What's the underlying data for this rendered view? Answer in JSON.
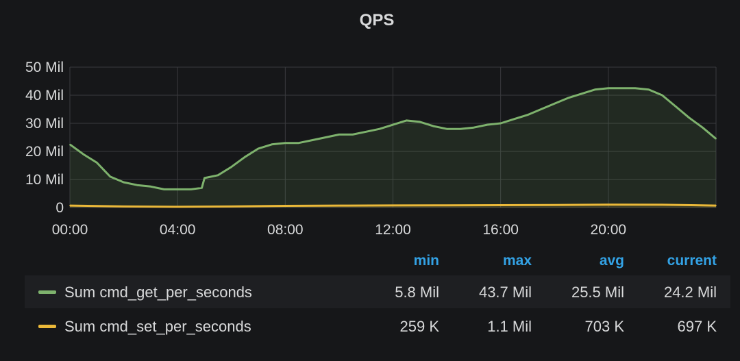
{
  "chart_data": {
    "type": "area",
    "title": "QPS",
    "ylim": [
      0,
      50
    ],
    "yunit": "Mil",
    "yticks": [
      "0",
      "10 Mil",
      "20 Mil",
      "30 Mil",
      "40 Mil",
      "50 Mil"
    ],
    "ytick_values": [
      0,
      10,
      20,
      30,
      40,
      50
    ],
    "xlim": [
      0,
      24
    ],
    "xticks": [
      "00:00",
      "04:00",
      "08:00",
      "12:00",
      "16:00",
      "20:00"
    ],
    "xtick_values": [
      0,
      4,
      8,
      12,
      16,
      20
    ],
    "grid": true,
    "legend_position": "bottom",
    "series": [
      {
        "name": "Sum cmd_get_per_seconds",
        "color": "#7eb26d",
        "x": [
          0,
          0.5,
          1,
          1.5,
          2,
          2.5,
          3,
          3.5,
          4,
          4.5,
          4.9,
          5,
          5.5,
          6,
          6.5,
          7,
          7.5,
          8,
          8.5,
          9,
          9.5,
          10,
          10.5,
          11,
          11.5,
          12,
          12.5,
          13,
          13.5,
          14,
          14.5,
          15,
          15.5,
          16,
          16.5,
          17,
          17.5,
          18,
          18.5,
          19,
          19.5,
          20,
          20.5,
          21,
          21.5,
          22,
          22.5,
          23,
          23.5,
          24
        ],
        "values": [
          22.5,
          19,
          16,
          11,
          9,
          8,
          7.5,
          6.5,
          6.5,
          6.5,
          7,
          10.5,
          11.5,
          14.5,
          18,
          21,
          22.5,
          23,
          23,
          24,
          25,
          26,
          26,
          27,
          28,
          29.5,
          31,
          30.5,
          29,
          28,
          28,
          28.5,
          29.5,
          30,
          31.5,
          33,
          35,
          37,
          39,
          40.5,
          42,
          42.5,
          42.5,
          42.5,
          42,
          40,
          36,
          32,
          28.5,
          24.5
        ],
        "stats": {
          "min": "5.8 Mil",
          "max": "43.7 Mil",
          "avg": "25.5 Mil",
          "current": "24.2 Mil"
        }
      },
      {
        "name": "Sum cmd_set_per_seconds",
        "color": "#eab839",
        "x": [
          0,
          2,
          4,
          6,
          8,
          10,
          12,
          14,
          16,
          18,
          20,
          22,
          24
        ],
        "values": [
          0.7,
          0.4,
          0.26,
          0.4,
          0.6,
          0.7,
          0.75,
          0.8,
          0.85,
          0.9,
          1.05,
          1.0,
          0.7
        ],
        "stats": {
          "min": "259 K",
          "max": "1.1 Mil",
          "avg": "703 K",
          "current": "697 K"
        }
      }
    ]
  },
  "legend": {
    "headers": {
      "min": "min",
      "max": "max",
      "avg": "avg",
      "current": "current"
    }
  }
}
